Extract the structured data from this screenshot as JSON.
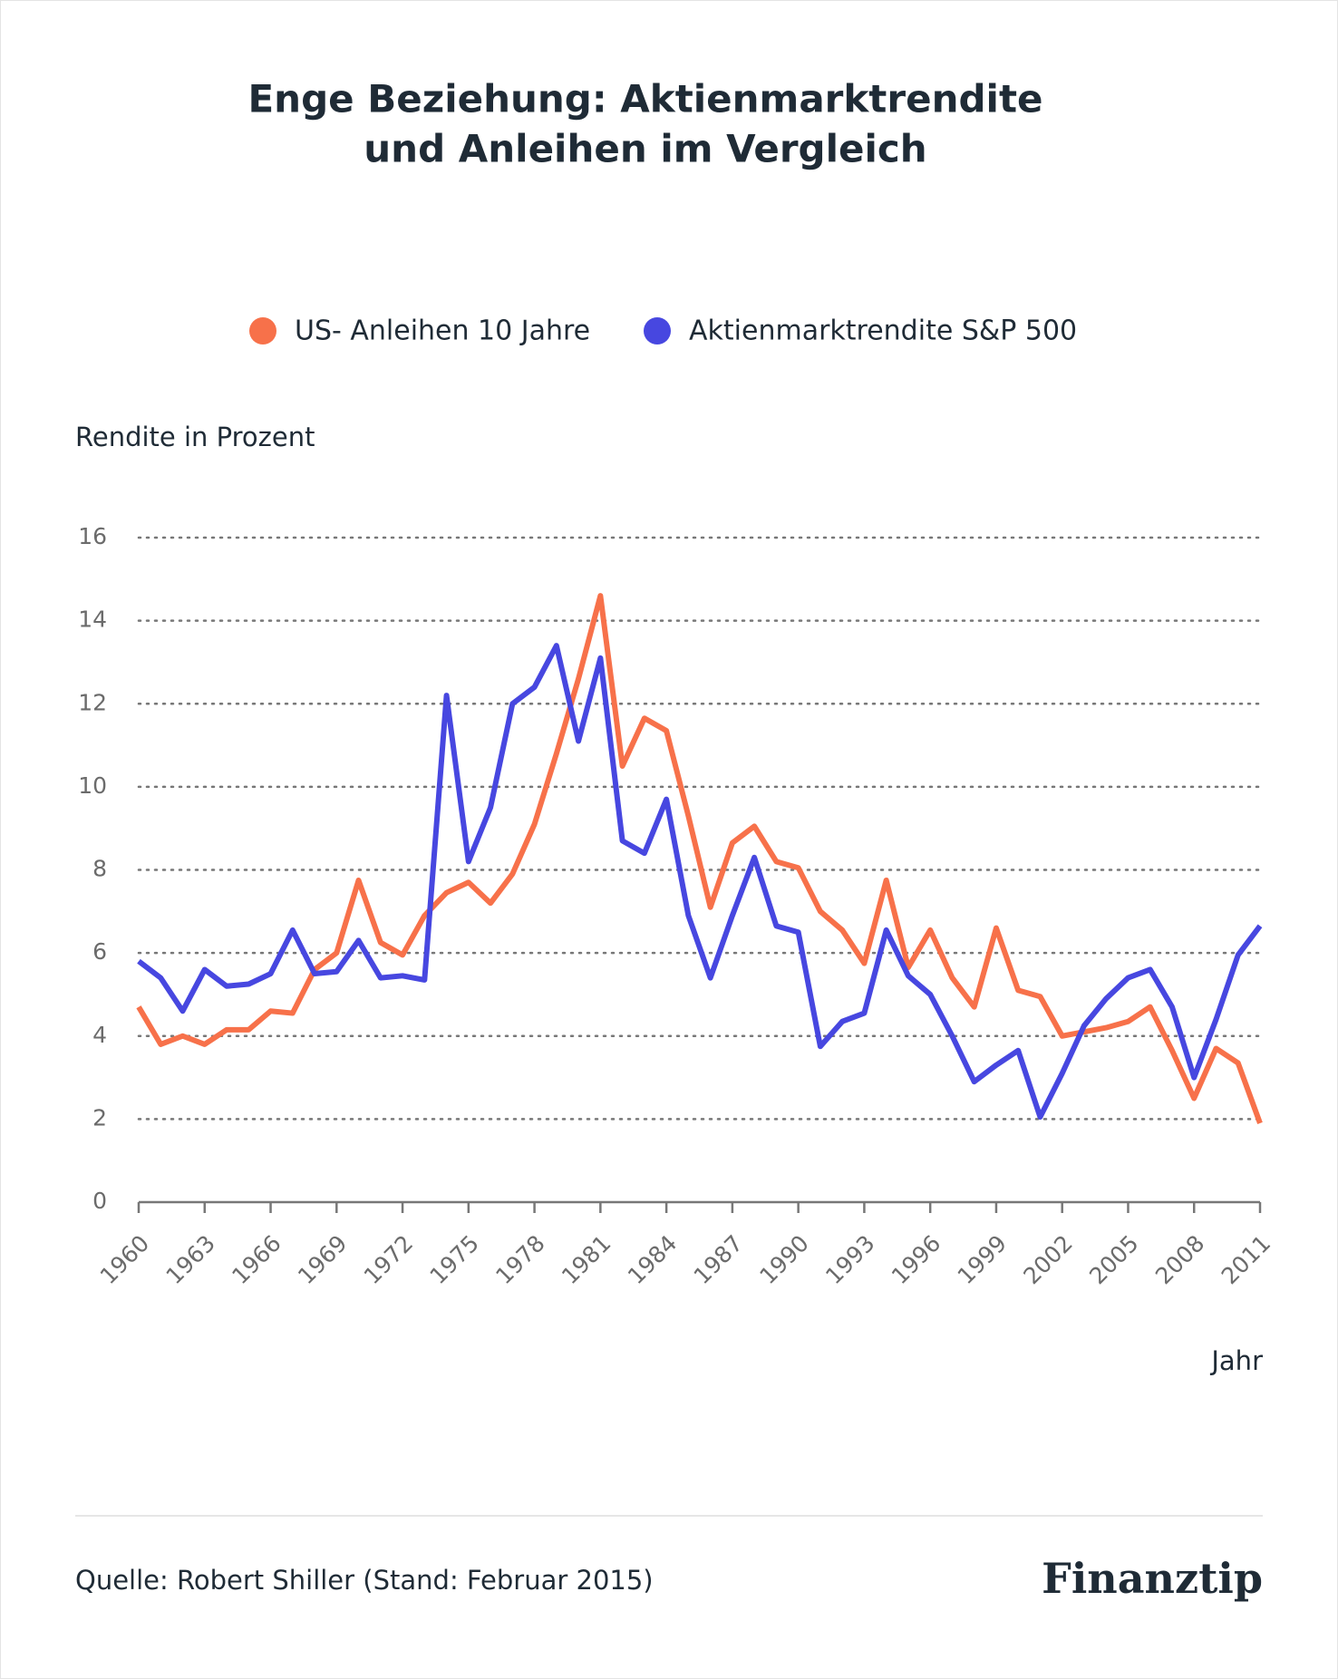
{
  "chart_data": {
    "type": "line",
    "title": "Enge Beziehung: Aktienmarktrendite",
    "title_line2": "und Anleihen im Vergleich",
    "y_label": "Rendite in Prozent",
    "x_label": "Jahr",
    "source": "Quelle: Robert Shiller (Stand: Februar 2015)",
    "brand": "Finanztip",
    "x": [
      1960,
      1961,
      1962,
      1963,
      1964,
      1965,
      1966,
      1967,
      1968,
      1969,
      1970,
      1971,
      1972,
      1973,
      1974,
      1975,
      1976,
      1977,
      1978,
      1979,
      1980,
      1981,
      1982,
      1983,
      1984,
      1985,
      1986,
      1987,
      1988,
      1989,
      1990,
      1991,
      1992,
      1993,
      1994,
      1995,
      1996,
      1997,
      1998,
      1999,
      2000,
      2001,
      2002,
      2003,
      2004,
      2005,
      2006,
      2007,
      2008,
      2009,
      2010,
      2011
    ],
    "series": [
      {
        "name": "US- Anleihen 10 Jahre",
        "color": "#f7714a",
        "values": [
          4.7,
          3.8,
          4.0,
          3.8,
          4.15,
          4.15,
          4.6,
          4.55,
          5.6,
          6.0,
          7.75,
          6.25,
          5.95,
          6.9,
          7.45,
          7.7,
          7.2,
          7.9,
          9.1,
          10.8,
          12.6,
          14.6,
          10.5,
          11.65,
          11.35,
          9.3,
          7.1,
          8.65,
          9.05,
          8.2,
          8.05,
          7.0,
          6.55,
          5.75,
          7.75,
          5.65,
          6.55,
          5.4,
          4.7,
          6.6,
          5.1,
          4.95,
          4.0,
          4.1,
          4.2,
          4.35,
          4.7,
          3.65,
          2.5,
          3.7,
          3.35,
          1.9
        ]
      },
      {
        "name": "Aktienmarktrendite S&P 500",
        "color": "#4747e0",
        "values": [
          5.8,
          5.4,
          4.6,
          5.6,
          5.2,
          5.25,
          5.5,
          6.55,
          5.5,
          5.55,
          6.3,
          5.4,
          5.45,
          5.35,
          12.2,
          8.2,
          9.5,
          12.0,
          12.4,
          13.4,
          11.1,
          13.1,
          8.7,
          8.4,
          9.7,
          6.9,
          5.4,
          6.9,
          8.3,
          6.65,
          6.5,
          3.75,
          4.35,
          4.55,
          6.55,
          5.45,
          5.0,
          4.0,
          2.9,
          3.3,
          3.65,
          2.05,
          3.1,
          4.25,
          4.9,
          5.4,
          5.6,
          4.7,
          3.0,
          4.4,
          5.95,
          6.65
        ]
      }
    ],
    "xlim": [
      1960,
      2011
    ],
    "xticks": [
      1960,
      1963,
      1966,
      1969,
      1972,
      1975,
      1978,
      1981,
      1984,
      1987,
      1990,
      1993,
      1996,
      1999,
      2002,
      2005,
      2008,
      2011
    ],
    "ylim": [
      0,
      16
    ],
    "yticks": [
      0,
      2,
      4,
      6,
      8,
      10,
      12,
      14,
      16
    ],
    "grid": true
  }
}
